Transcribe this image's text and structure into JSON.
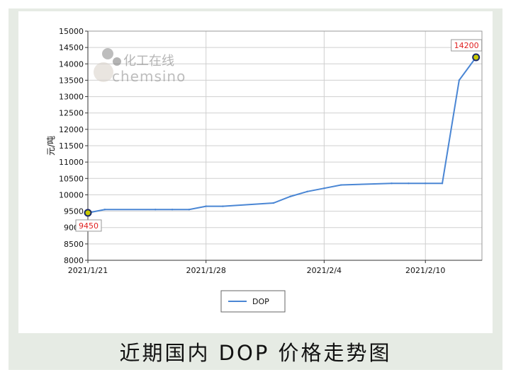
{
  "chart_data": {
    "type": "line",
    "title": "",
    "xlabel": "",
    "ylabel": "元/吨",
    "ylim": [
      8000,
      15000
    ],
    "yticks": [
      8000,
      8500,
      9000,
      9500,
      10000,
      10500,
      11000,
      11500,
      12000,
      12500,
      13000,
      13500,
      14000,
      14500,
      15000
    ],
    "x_tick_labels": [
      "2021/1/21",
      "2021/1/28",
      "2021/2/4",
      "2021/2/10"
    ],
    "grid": true,
    "legend_position": "bottom-center",
    "series": [
      {
        "name": "DOP",
        "color": "#4a86d4",
        "x": [
          "2021/1/21",
          "2021/1/22",
          "2021/1/25",
          "2021/1/26",
          "2021/1/27",
          "2021/1/28",
          "2021/1/29",
          "2021/2/1",
          "2021/2/2",
          "2021/2/3",
          "2021/2/4",
          "2021/2/5",
          "2021/2/8",
          "2021/2/9",
          "2021/2/10",
          "2021/2/11",
          "2021/2/12",
          "2021/2/13"
        ],
        "values": [
          9450,
          9550,
          9550,
          9550,
          9550,
          9650,
          9650,
          9750,
          9950,
          10100,
          10200,
          10300,
          10350,
          10350,
          10350,
          10350,
          13500,
          14200
        ]
      }
    ],
    "data_labels": [
      {
        "text": "9450",
        "series": "DOP",
        "index": 0
      },
      {
        "text": "14200",
        "series": "DOP",
        "index": 17
      }
    ]
  },
  "watermark": {
    "text_cn": "化工在线",
    "text_en": "chemsino"
  },
  "caption": "近期国内 DOP 价格走势图",
  "colors": {
    "frame_bg": "#e6ebe4",
    "line": "#4a86d4",
    "label_red": "#e02020",
    "marker_fill": "#c8c800"
  }
}
